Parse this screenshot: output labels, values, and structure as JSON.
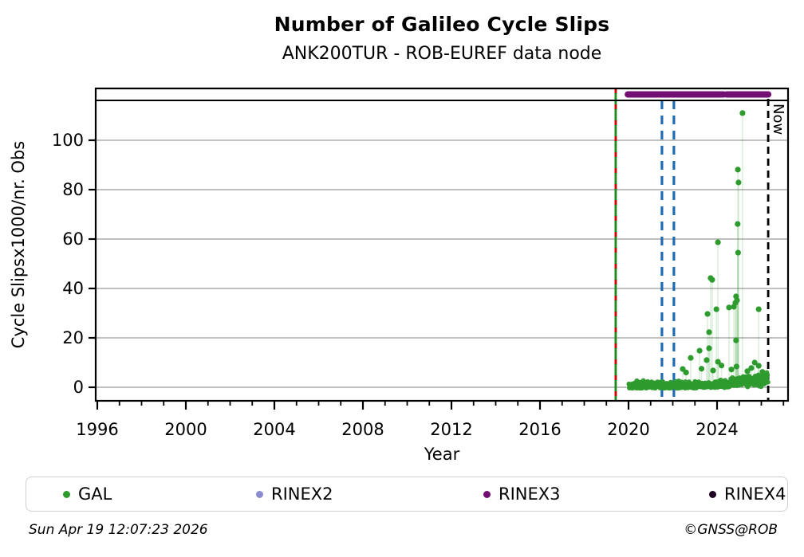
{
  "header": {
    "title": "Number of Galileo Cycle Slips",
    "subtitle": "ANK200TUR - ROB-EUREF data node"
  },
  "chart_data": {
    "type": "scatter",
    "title": "Number of Galileo Cycle Slips",
    "subtitle": "ANK200TUR - ROB-EUREF data node",
    "xlabel": "Year",
    "ylabel": "Cycle Slipsx1000/nr. Obs",
    "xlim": [
      1995.9,
      2027.2
    ],
    "ylim": [
      -7,
      121
    ],
    "x_major_ticks": [
      1996,
      2000,
      2004,
      2008,
      2012,
      2016,
      2020,
      2024
    ],
    "x_minor_tick_range": {
      "from": 1996,
      "to": 2027,
      "step": 1
    },
    "y_ticks": [
      0,
      20,
      40,
      60,
      80,
      100
    ],
    "grid": "horizontal-only",
    "legend_position": "bottom",
    "colors": {
      "gal": "#2e9b2e",
      "stem": "rgba(46,155,46,0.16)",
      "grid": "#ababab",
      "blue_event": "#1f6cb4",
      "green_event": "#1a8a1a",
      "red_event": "#d40000",
      "now_line": "#000000",
      "rinex3_band": "#730f73"
    },
    "events": {
      "green_red_dashed_line_year": 2019.42,
      "blue_dashed_line_years": [
        2021.51,
        2022.05
      ],
      "now_line_year": 2026.31,
      "now_label": "Now"
    },
    "rinex3_availability_segments": [
      [
        2019.97,
        2024.29
      ],
      [
        2024.43,
        2026.31
      ]
    ],
    "series": [
      {
        "name": "GAL",
        "type": "spike_points",
        "points": [
          [
            2025.15,
            111.0
          ],
          [
            2024.94,
            88.1
          ],
          [
            2024.97,
            82.9
          ],
          [
            2024.93,
            66.1
          ],
          [
            2024.04,
            58.7
          ],
          [
            2024.95,
            54.5
          ],
          [
            2023.71,
            44.2
          ],
          [
            2023.78,
            43.5
          ],
          [
            2024.86,
            36.8
          ],
          [
            2024.9,
            35.2
          ],
          [
            2024.83,
            34.2
          ],
          [
            2024.76,
            32.6
          ],
          [
            2024.54,
            32.3
          ],
          [
            2023.97,
            31.6
          ],
          [
            2025.88,
            31.6
          ],
          [
            2023.57,
            29.7
          ],
          [
            2023.64,
            22.3
          ],
          [
            2024.86,
            19.0
          ],
          [
            2023.64,
            15.8
          ],
          [
            2023.21,
            14.8
          ],
          [
            2022.81,
            11.9
          ],
          [
            2023.53,
            11.0
          ],
          [
            2024.04,
            10.3
          ],
          [
            2025.7,
            10.0
          ],
          [
            2025.88,
            8.7
          ],
          [
            2022.45,
            7.4
          ],
          [
            2023.82,
            6.8
          ],
          [
            2024.88,
            8.4
          ],
          [
            2025.37,
            6.5
          ],
          [
            2022.6,
            6.0
          ],
          [
            2023.3,
            7.5
          ],
          [
            2024.2,
            8.8
          ],
          [
            2024.65,
            7.2
          ],
          [
            2025.55,
            7.8
          ],
          [
            2026.05,
            6.2
          ],
          [
            2026.15,
            5.0
          ]
        ]
      },
      {
        "name": "GAL-dense-baseline",
        "type": "procedural_band",
        "seed": 7,
        "n": 700,
        "year_start": 2020.02,
        "year_end": 2026.3,
        "typical_value_range": [
          0,
          3
        ],
        "note": "dense daily points hugging 0-3, spread grows after 2023 up to ~7"
      }
    ]
  },
  "legend": {
    "items": [
      {
        "label": "GAL",
        "color": "#2e9b2e"
      },
      {
        "label": "RINEX2",
        "color": "#8b8bd0"
      },
      {
        "label": "RINEX3",
        "color": "#730f73"
      },
      {
        "label": "RINEX4",
        "color": "#1d0221"
      }
    ]
  },
  "footer": {
    "timestamp": "Sun Apr 19 12:07:23 2026",
    "credit": "©GNSS@ROB"
  }
}
